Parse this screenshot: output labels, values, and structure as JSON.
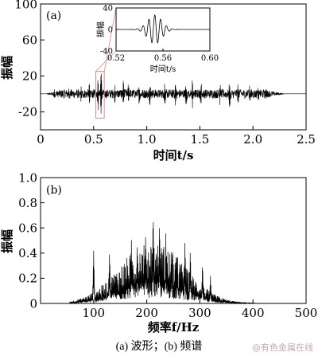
{
  "caption": "(a) 波形；(b) 频谱",
  "watermark": "@有色金属在线",
  "chart_data": [
    {
      "id": "a",
      "type": "line",
      "panel_label": "(a)",
      "xlabel": "时间t/s",
      "ylabel": "振幅",
      "xlim": [
        0,
        2.5
      ],
      "ylim": [
        -40,
        100
      ],
      "xticks": [
        "0",
        "0.5",
        "1.0",
        "1.5",
        "2.0",
        "2.5"
      ],
      "yticks": [
        "100",
        "60",
        "20",
        "-20"
      ],
      "baseline": 0,
      "signal_end": 2.3,
      "noise_amplitude": 5,
      "pulses": [
        {
          "t": 0.13,
          "amp": 4
        },
        {
          "t": 0.27,
          "amp": 6
        },
        {
          "t": 0.38,
          "amp": 7
        },
        {
          "t": 0.46,
          "amp": 12
        },
        {
          "t": 0.54,
          "amp": 16
        },
        {
          "t": 0.57,
          "amp": 28
        },
        {
          "t": 0.7,
          "amp": 9
        },
        {
          "t": 0.78,
          "amp": 12
        },
        {
          "t": 0.83,
          "amp": 12
        },
        {
          "t": 0.93,
          "amp": 10
        },
        {
          "t": 1.03,
          "amp": 12
        },
        {
          "t": 1.17,
          "amp": 14
        },
        {
          "t": 1.27,
          "amp": 10
        },
        {
          "t": 1.37,
          "amp": 12
        },
        {
          "t": 1.43,
          "amp": 14
        },
        {
          "t": 1.51,
          "amp": 12
        },
        {
          "t": 1.69,
          "amp": 11
        },
        {
          "t": 1.78,
          "amp": 14
        },
        {
          "t": 1.86,
          "amp": 8
        },
        {
          "t": 1.97,
          "amp": 7
        },
        {
          "t": 2.05,
          "amp": 5
        },
        {
          "t": 2.12,
          "amp": 3
        }
      ],
      "highlight": {
        "t0": 0.52,
        "t1": 0.6,
        "ymin": -27,
        "ymax": 25
      }
    },
    {
      "id": "a-inset",
      "type": "line",
      "xlabel": "时间t/s",
      "ylabel": "振幅",
      "xlim": [
        0.52,
        0.6
      ],
      "ylim": [
        -40,
        40
      ],
      "xticks": [
        "0.52",
        "0.56",
        "0.60"
      ],
      "yticks": [
        "40",
        "0",
        "-40"
      ],
      "wavelet": {
        "center": 0.553,
        "amp": 27,
        "frequency_hz": 200,
        "sigma": 0.006
      }
    },
    {
      "id": "b",
      "type": "line",
      "panel_label": "(b)",
      "xlabel": "频率f/Hz",
      "ylabel": "振幅",
      "xlim": [
        0,
        500
      ],
      "ylim": [
        0,
        1.0
      ],
      "xticks": [
        "100",
        "200",
        "300",
        "400",
        "500"
      ],
      "yticks": [
        "0",
        "0.2",
        "0.4",
        "0.6",
        "0.8",
        "1.0"
      ],
      "spectrum": {
        "start_hz": 55,
        "end_hz": 475,
        "envelope_peak_hz": 210,
        "envelope_peak": 0.5,
        "peaks": [
          {
            "f": 100,
            "v": 0.43
          },
          {
            "f": 130,
            "v": 0.42
          },
          {
            "f": 138,
            "v": 0.25
          },
          {
            "f": 171,
            "v": 0.52
          },
          {
            "f": 182,
            "v": 0.5
          },
          {
            "f": 198,
            "v": 0.58
          },
          {
            "f": 212,
            "v": 0.75
          },
          {
            "f": 224,
            "v": 0.67
          },
          {
            "f": 236,
            "v": 0.56
          },
          {
            "f": 247,
            "v": 0.48
          },
          {
            "f": 258,
            "v": 0.39
          },
          {
            "f": 272,
            "v": 0.51
          },
          {
            "f": 282,
            "v": 0.44
          },
          {
            "f": 305,
            "v": 0.33
          },
          {
            "f": 320,
            "v": 0.22
          }
        ]
      }
    }
  ]
}
